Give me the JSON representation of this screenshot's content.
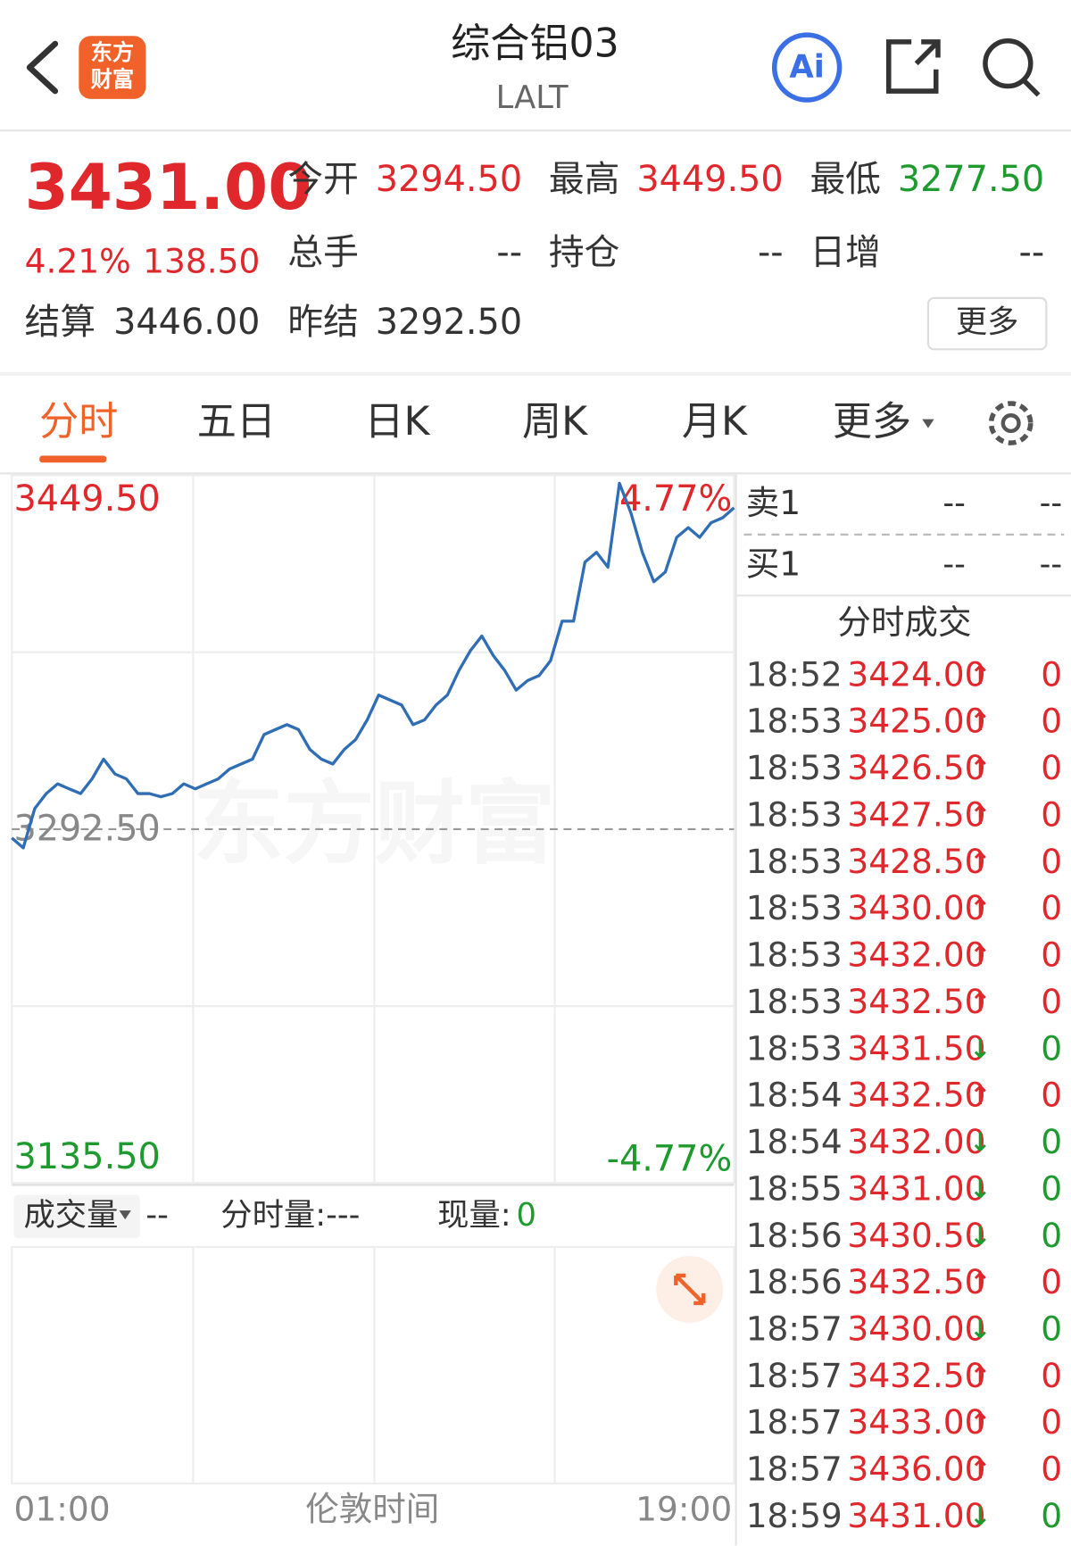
{
  "header": {
    "title": "综合铝03",
    "subtitle": "LALT",
    "logo": [
      "东方",
      "财富"
    ]
  },
  "quote": {
    "price": "3431.00",
    "change_pct": "4.21%",
    "change": "138.50",
    "fields": [
      {
        "label": "今开",
        "value": "3294.50",
        "color": "#e0272c"
      },
      {
        "label": "最高",
        "value": "3449.50",
        "color": "#e0272c"
      },
      {
        "label": "最低",
        "value": "3277.50",
        "color": "#1e9a2f"
      },
      {
        "label": "总手",
        "value": "--",
        "color": "#333333"
      },
      {
        "label": "持仓",
        "value": "--",
        "color": "#333333"
      },
      {
        "label": "日增",
        "value": "--",
        "color": "#333333"
      }
    ],
    "settle": {
      "label": "结算",
      "value": "3446.00"
    },
    "prev_settle": {
      "label": "昨结",
      "value": "3292.50"
    },
    "more": "更多"
  },
  "tabs": [
    "分时",
    "五日",
    "日K",
    "周K",
    "月K",
    "更多"
  ],
  "chart_data": {
    "type": "line",
    "watermark": "东方财富",
    "series": [
      {
        "color": "#2f6db5",
        "values": [
          3288.6,
          3284.2,
          3301.7,
          3308.3,
          3312.6,
          3310.4,
          3308.3,
          3314.8,
          3323.6,
          3317.0,
          3314.8,
          3308.3,
          3308.3,
          3306.9,
          3308.3,
          3312.6,
          3310.4,
          3312.6,
          3314.8,
          3319.2,
          3321.4,
          3323.6,
          3334.5,
          3336.7,
          3338.9,
          3336.7,
          3327.9,
          3323.6,
          3321.4,
          3327.9,
          3332.3,
          3341.0,
          3352.0,
          3349.8,
          3347.6,
          3338.9,
          3341.0,
          3347.6,
          3352.0,
          3362.9,
          3371.7,
          3378.2,
          3369.5,
          3362.9,
          3354.2,
          3358.5,
          3360.7,
          3367.3,
          3384.8,
          3384.8,
          3411.0,
          3415.4,
          3408.8,
          3446.0,
          3432.9,
          3415.4,
          3402.3,
          3406.6,
          3422.0,
          3426.3,
          3422.0,
          3428.5,
          3430.7,
          3435.1
        ]
      }
    ],
    "ylim": [
      3135.5,
      3449.5
    ],
    "yticks": [
      {
        "value": 3449.5,
        "label": "3449.50",
        "color": "#e0272c"
      },
      {
        "value": 3292.5,
        "label": "3292.50",
        "color": "#888888"
      },
      {
        "value": 3135.5,
        "label": "3135.50",
        "color": "#1e9a2f"
      }
    ],
    "pct_labels": [
      "4.77%",
      "-4.77%"
    ],
    "x_labels": [
      "01:00",
      "19:00"
    ],
    "x_title": "伦敦时间"
  },
  "volume": {
    "label": "成交量",
    "value": "--",
    "period_label": "分时量:---",
    "now_label": "现量:",
    "now_value": "0"
  },
  "orderbook": [
    {
      "label": "卖1",
      "price": "--",
      "volume": "--"
    },
    {
      "label": "买1",
      "price": "--",
      "volume": "--"
    }
  ],
  "trades": {
    "title": "分时成交",
    "rows": [
      {
        "time": "18:52",
        "price": "3424.00",
        "arrow": "↑",
        "volume": "0",
        "color": "#e0272c"
      },
      {
        "time": "18:53",
        "price": "3425.00",
        "arrow": "↑",
        "volume": "0",
        "color": "#e0272c"
      },
      {
        "time": "18:53",
        "price": "3426.50",
        "arrow": "↑",
        "volume": "0",
        "color": "#e0272c"
      },
      {
        "time": "18:53",
        "price": "3427.50",
        "arrow": "↑",
        "volume": "0",
        "color": "#e0272c"
      },
      {
        "time": "18:53",
        "price": "3428.50",
        "arrow": "↑",
        "volume": "0",
        "color": "#e0272c"
      },
      {
        "time": "18:53",
        "price": "3430.00",
        "arrow": "↑",
        "volume": "0",
        "color": "#e0272c"
      },
      {
        "time": "18:53",
        "price": "3432.00",
        "arrow": "↑",
        "volume": "0",
        "color": "#e0272c"
      },
      {
        "time": "18:53",
        "price": "3432.50",
        "arrow": "↑",
        "volume": "0",
        "color": "#e0272c"
      },
      {
        "time": "18:53",
        "price": "3431.50",
        "arrow": "↓",
        "volume": "0",
        "color": "#1e9a2f"
      },
      {
        "time": "18:54",
        "price": "3432.50",
        "arrow": "↑",
        "volume": "0",
        "color": "#e0272c"
      },
      {
        "time": "18:54",
        "price": "3432.00",
        "arrow": "↓",
        "volume": "0",
        "color": "#1e9a2f"
      },
      {
        "time": "18:55",
        "price": "3431.00",
        "arrow": "↓",
        "volume": "0",
        "color": "#1e9a2f"
      },
      {
        "time": "18:56",
        "price": "3430.50",
        "arrow": "↓",
        "volume": "0",
        "color": "#1e9a2f"
      },
      {
        "time": "18:56",
        "price": "3432.50",
        "arrow": "↑",
        "volume": "0",
        "color": "#e0272c"
      },
      {
        "time": "18:57",
        "price": "3430.00",
        "arrow": "↓",
        "volume": "0",
        "color": "#1e9a2f"
      },
      {
        "time": "18:57",
        "price": "3432.50",
        "arrow": "↑",
        "volume": "0",
        "color": "#e0272c"
      },
      {
        "time": "18:57",
        "price": "3433.00",
        "arrow": "↑",
        "volume": "0",
        "color": "#e0272c"
      },
      {
        "time": "18:57",
        "price": "3436.00",
        "arrow": "↑",
        "volume": "0",
        "color": "#e0272c"
      },
      {
        "time": "18:59",
        "price": "3431.00",
        "arrow": "↓",
        "volume": "0",
        "color": "#1e9a2f"
      }
    ]
  }
}
